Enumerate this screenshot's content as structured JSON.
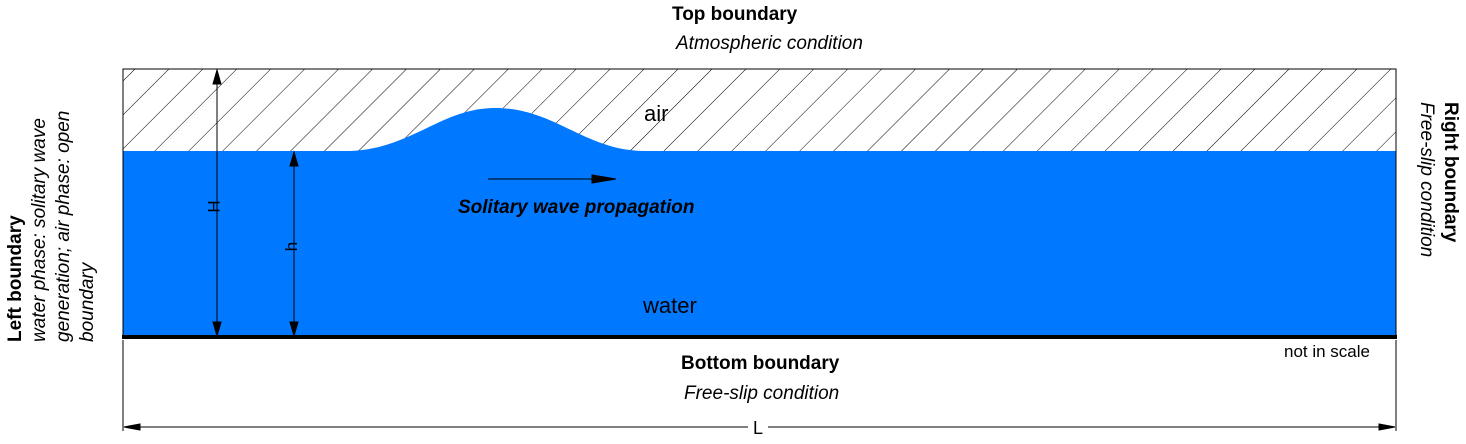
{
  "top_boundary": {
    "title": "Top boundary",
    "condition": "Atmospheric condition"
  },
  "bottom_boundary": {
    "title": "Bottom boundary",
    "condition": "Free-slip condition"
  },
  "left_boundary": {
    "title": "Left boundary",
    "lines": [
      "water phase: solitary wave",
      "generation; air phase: open",
      "boundary"
    ]
  },
  "right_boundary": {
    "title": "Right boundary",
    "condition": "Free-slip condition"
  },
  "regions": {
    "air": "air",
    "water": "water"
  },
  "propagation_label": "Solitary wave propagation",
  "scale_note": "not in scale",
  "dimensions": {
    "H": "H",
    "h": "h",
    "L": "L"
  },
  "colors": {
    "water": "#0078ff",
    "hatch": "#000000",
    "outline": "#000000"
  }
}
